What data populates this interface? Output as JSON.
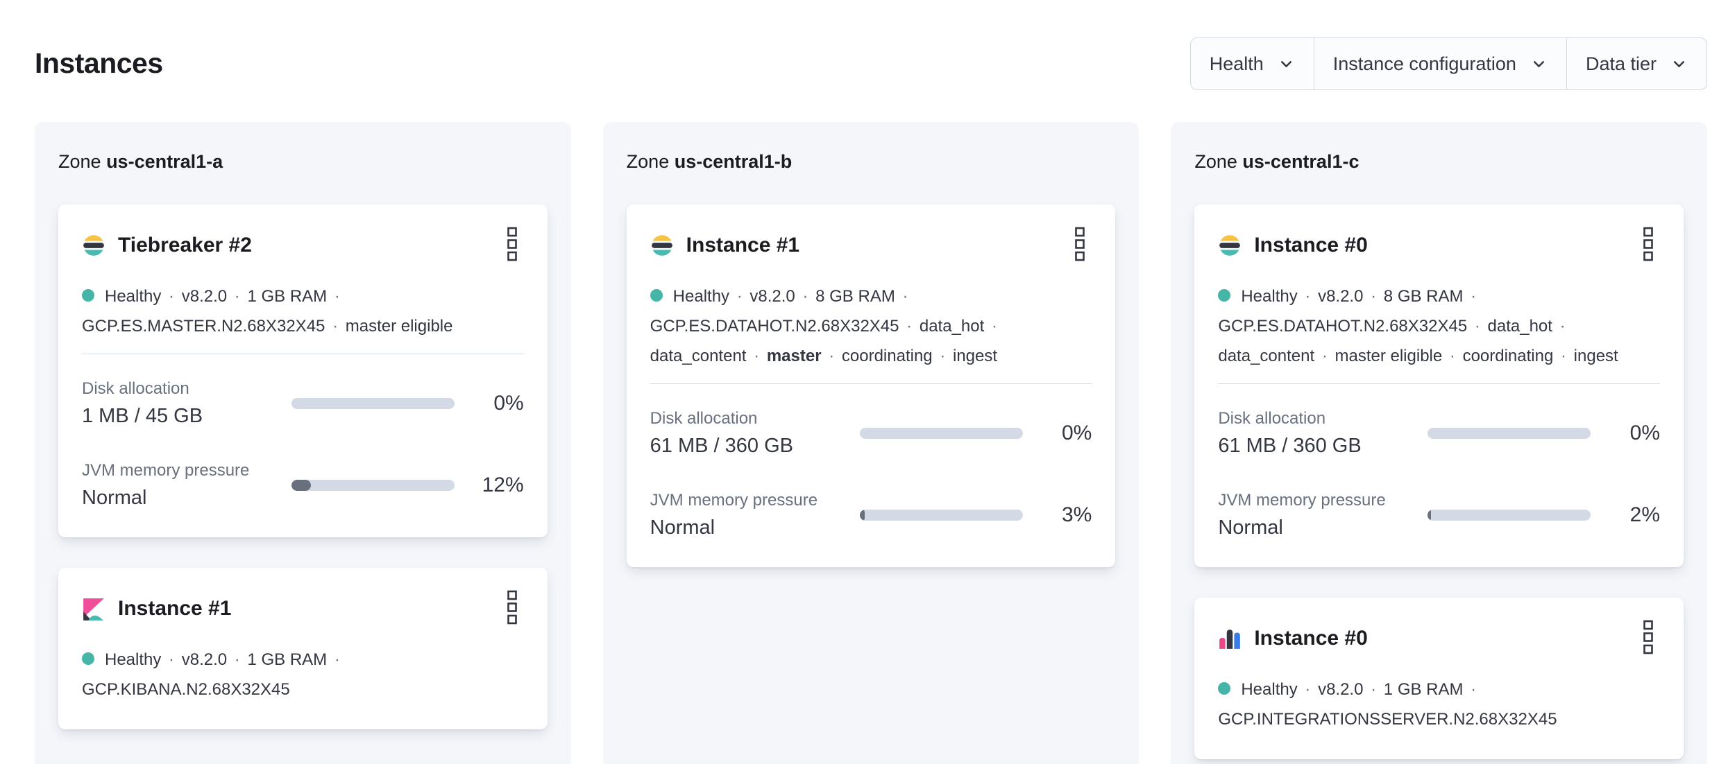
{
  "ui": {
    "separator": "·"
  },
  "colors": {
    "healthy_dot": "#45b5a7",
    "bar_track": "#d3dae6",
    "bar_fill": "#69707d",
    "elastic_yellow": "#f6c344",
    "elastic_dark": "#343741",
    "elastic_teal": "#49bab1",
    "kibana_pink": "#f04e98",
    "integrations_blue": "#3b7de4"
  },
  "header": {
    "title": "Instances"
  },
  "filters": {
    "health": "Health",
    "instance_configuration": "Instance configuration",
    "data_tier": "Data tier"
  },
  "zones": {
    "prefix": "Zone",
    "a": {
      "name": "us-central1-a"
    },
    "b": {
      "name": "us-central1-b"
    },
    "c": {
      "name": "us-central1-c"
    }
  },
  "cards": {
    "a1": {
      "icon": "elasticsearch-logo-icon",
      "title": "Tiebreaker #2",
      "status": [
        "Healthy",
        "v8.2.0",
        "1 GB RAM",
        "GCP.ES.MASTER.N2.68X32X45",
        "master eligible"
      ],
      "disk": {
        "label": "Disk allocation",
        "value": "1 MB / 45 GB",
        "percent": "0%"
      },
      "jvm": {
        "label": "JVM memory pressure",
        "value": "Normal",
        "percent": "12%"
      }
    },
    "a2": {
      "icon": "kibana-logo-icon",
      "title": "Instance #1",
      "status": [
        "Healthy",
        "v8.2.0",
        "1 GB RAM",
        "GCP.KIBANA.N2.68X32X45"
      ]
    },
    "b1": {
      "icon": "elasticsearch-logo-icon",
      "title": "Instance #1",
      "status": [
        "Healthy",
        "v8.2.0",
        "8 GB RAM",
        "GCP.ES.DATAHOT.N2.68X32X45",
        "data_hot",
        "data_content",
        "master",
        "coordinating",
        "ingest"
      ],
      "disk": {
        "label": "Disk allocation",
        "value": "61 MB / 360 GB",
        "percent": "0%"
      },
      "jvm": {
        "label": "JVM memory pressure",
        "value": "Normal",
        "percent": "3%"
      }
    },
    "c1": {
      "icon": "elasticsearch-logo-icon",
      "title": "Instance #0",
      "status": [
        "Healthy",
        "v8.2.0",
        "8 GB RAM",
        "GCP.ES.DATAHOT.N2.68X32X45",
        "data_hot",
        "data_content",
        "master eligible",
        "coordinating",
        "ingest"
      ],
      "disk": {
        "label": "Disk allocation",
        "value": "61 MB / 360 GB",
        "percent": "0%"
      },
      "jvm": {
        "label": "JVM memory pressure",
        "value": "Normal",
        "percent": "2%"
      }
    },
    "c2": {
      "icon": "integrations-server-logo-icon",
      "title": "Instance #0",
      "status": [
        "Healthy",
        "v8.2.0",
        "1 GB RAM",
        "GCP.INTEGRATIONSSERVER.N2.68X32X45"
      ]
    }
  }
}
